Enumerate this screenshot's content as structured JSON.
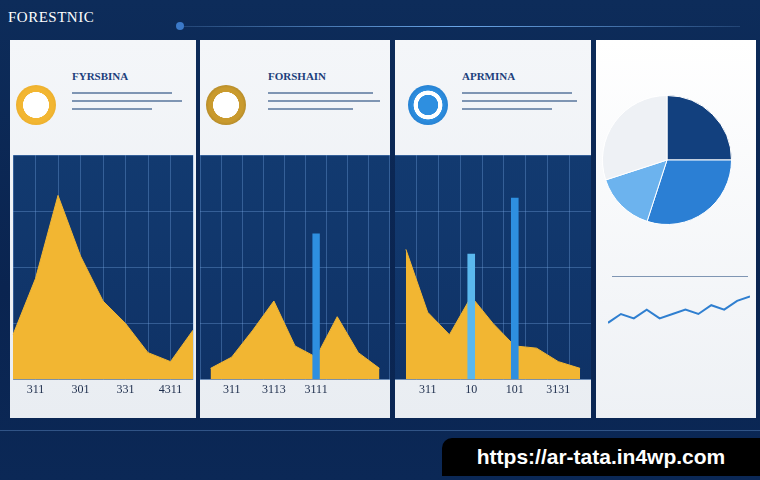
{
  "header": {
    "title": "FORESTNIC"
  },
  "footer": {
    "url": "https://ar-tata.in4wp.com"
  },
  "chart_data": [
    {
      "type": "line",
      "title": "FYRSBINA",
      "categories": [
        null,
        "311",
        null,
        "301",
        null,
        "331",
        null,
        "4311",
        null
      ],
      "values": [
        20,
        45,
        82,
        55,
        35,
        25,
        12,
        8,
        22
      ],
      "color": "#f2b632",
      "ylim": [
        0,
        100
      ],
      "yticks": [
        0,
        25,
        50,
        75,
        100
      ],
      "grid": true,
      "tick_labels": "x"
    },
    {
      "type": "bar",
      "title": "FORSHAIN",
      "categories": [
        null,
        "311",
        null,
        "3113",
        null,
        "3111",
        null,
        null,
        null
      ],
      "series": [
        {
          "type": "line",
          "color": "#f2b632",
          "values": [
            5,
            10,
            22,
            35,
            15,
            10,
            28,
            12,
            5
          ]
        },
        {
          "type": "bar",
          "color": "#2e8fe0",
          "values": [
            null,
            null,
            null,
            null,
            null,
            65,
            null,
            null,
            null
          ]
        }
      ],
      "ylim": [
        0,
        100
      ],
      "yticks": [
        0,
        25,
        50,
        75,
        100
      ],
      "grid": true,
      "tick_labels": "x"
    },
    {
      "type": "bar",
      "title": "APRMINA",
      "categories": [
        null,
        "311",
        null,
        "10",
        null,
        "101",
        null,
        "3131",
        null
      ],
      "series": [
        {
          "type": "line",
          "color": "#f2b632",
          "values": [
            58,
            30,
            20,
            37,
            25,
            15,
            14,
            8,
            5
          ]
        },
        {
          "type": "bar",
          "color": "#5ab8ee",
          "values": [
            null,
            null,
            null,
            56,
            null,
            null,
            null,
            null,
            null
          ]
        },
        {
          "type": "bar",
          "color": "#2e8fe0",
          "values": [
            null,
            null,
            null,
            null,
            null,
            81,
            null,
            null,
            null
          ]
        }
      ],
      "ylim": [
        0,
        100
      ],
      "yticks": [
        0,
        25,
        50,
        75,
        100
      ],
      "grid": true,
      "tick_labels": "x"
    },
    {
      "type": "pie",
      "values": [
        25,
        30,
        15,
        30
      ],
      "colors": [
        "#12407e",
        "#2b7fd4",
        "#6cb3ee",
        "#eef1f5"
      ]
    },
    {
      "type": "line",
      "categories": [
        null,
        null,
        null,
        null,
        null,
        null,
        null,
        null,
        null,
        null,
        null,
        null
      ],
      "values": [
        3,
        5,
        4,
        6,
        4,
        5,
        6,
        5,
        7,
        6,
        8,
        9
      ],
      "color": "#2f7fd0",
      "ylim": [
        0,
        10
      ],
      "yticks": [
        0,
        10
      ],
      "grid": false,
      "tick_labels": false
    }
  ]
}
